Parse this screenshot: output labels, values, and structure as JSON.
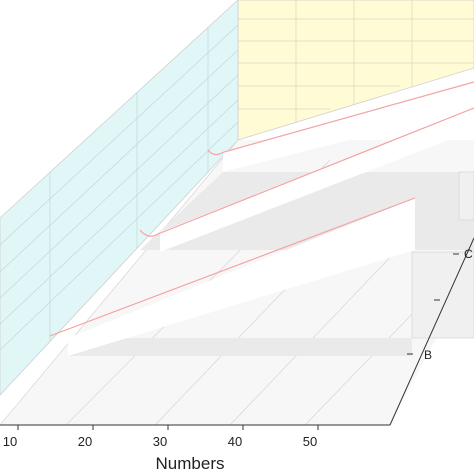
{
  "chart_data": {
    "type": "3d-line-wall",
    "xlabel": "Numbers",
    "x_ticks": [
      10,
      20,
      30,
      40,
      50
    ],
    "categories": [
      "B",
      "C"
    ],
    "colors": {
      "back_wall": "#fffbd5",
      "side_wall": "#e1f7f7",
      "floor": "#ececec",
      "series_line": "#f4a3a3",
      "grid": "#cfcfcf"
    },
    "grid": true
  }
}
